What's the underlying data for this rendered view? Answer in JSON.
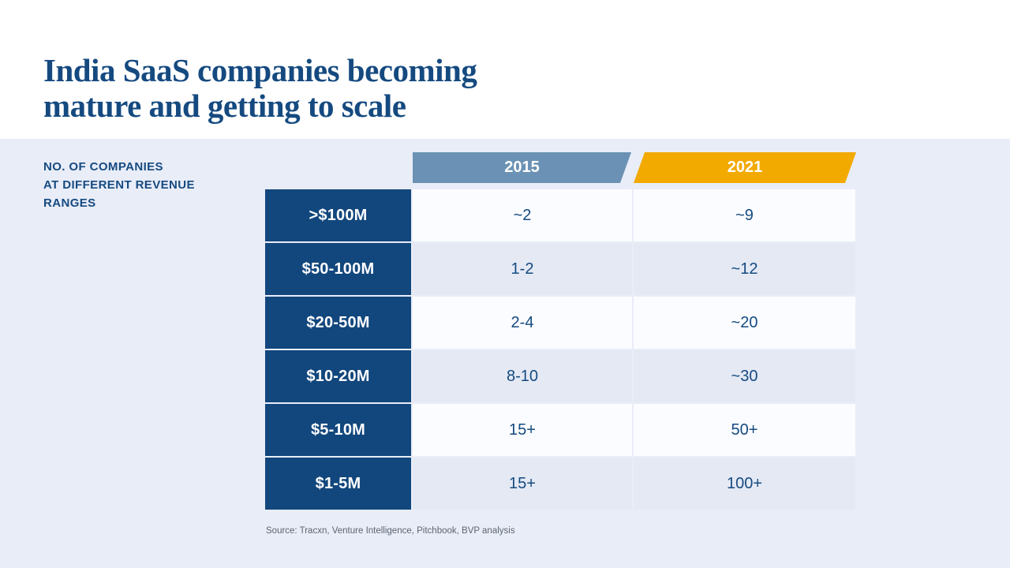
{
  "slide": {
    "title": {
      "line1": "India SaaS companies becoming",
      "line2": "mature and getting to scale"
    },
    "side_label": {
      "line1": "NO. OF COMPANIES",
      "line2": "AT DIFFERENT REVENUE",
      "line3": "RANGES"
    },
    "source": "Source: Tracxn, Venture Intelligence, Pitchbook, BVP analysis"
  },
  "chart_data": {
    "type": "table",
    "title": "India SaaS companies becoming mature and getting to scale",
    "description_label": "NO. OF COMPANIES AT DIFFERENT REVENUE RANGES",
    "columns": [
      "2015",
      "2021"
    ],
    "categories": [
      ">$100M",
      "$50-100M",
      "$20-50M",
      "$10-20M",
      "$5-10M",
      "$1-5M"
    ],
    "series": [
      {
        "name": "2015",
        "values": [
          "~2",
          "1-2",
          "2-4",
          "8-10",
          "15+",
          "15+"
        ]
      },
      {
        "name": "2021",
        "values": [
          "~9",
          "~12",
          "~20",
          "~30",
          "50+",
          "100+"
        ]
      }
    ],
    "source": "Source: Tracxn, Venture Intelligence, Pitchbook, BVP analysis"
  },
  "colors": {
    "navy_row_label": "#12477d",
    "title_navy": "#154a80",
    "header_2015": "#6b92b4",
    "header_2021": "#f2a900",
    "background": "#e9edf8",
    "row_light": "#fbfcff",
    "row_tint": "#e4e9f4",
    "source_text": "#5c6570"
  }
}
